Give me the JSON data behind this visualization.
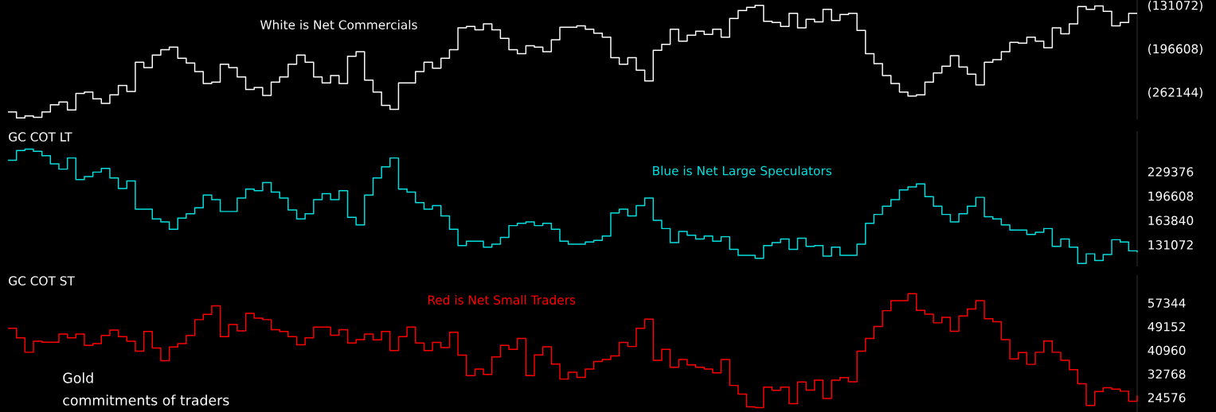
{
  "chart_data": [
    {
      "type": "step",
      "tick_labels": "y",
      "categories": [
        null,
        null,
        null,
        null,
        null,
        null,
        null,
        null,
        null,
        null,
        null,
        null,
        null,
        null,
        null,
        null,
        null,
        null,
        null,
        null,
        null,
        null,
        null,
        null,
        null,
        null,
        null,
        null,
        null,
        null,
        null,
        null,
        null,
        null,
        null,
        null,
        null,
        null,
        null,
        null,
        null,
        null,
        null,
        null,
        null,
        null,
        null,
        null,
        null,
        null,
        null,
        null,
        null,
        null,
        null,
        null,
        null,
        null,
        null,
        null,
        null,
        null,
        null,
        null,
        null,
        null,
        null,
        null,
        null,
        null,
        null,
        null,
        null,
        null,
        null,
        null,
        null,
        null,
        null,
        null,
        null,
        null,
        null,
        null,
        null,
        null,
        null,
        null,
        null,
        null,
        null,
        null,
        null,
        null,
        null,
        null,
        null,
        null,
        null,
        null,
        null,
        null,
        null,
        null,
        null,
        null,
        null,
        null,
        null,
        null,
        null,
        null,
        null,
        null,
        null,
        null,
        null,
        null,
        null,
        null,
        null,
        null,
        null,
        null,
        null,
        null,
        null,
        null,
        null,
        null,
        null,
        null,
        null,
        null
      ],
      "ylim": [
        -302000,
        -122000
      ],
      "yticks": [
        {
          "value": -131072,
          "label": "(131072)"
        },
        {
          "value": -196608,
          "label": "(196608)"
        },
        {
          "value": -262144,
          "label": "(262144)"
        }
      ],
      "series": [
        {
          "name": "White is Net Commercials",
          "color": "#ffffff",
          "values": [
            -291000,
            -300000,
            -297000,
            -299000,
            -291000,
            -280000,
            -276000,
            -288000,
            -263000,
            -261000,
            -271000,
            -278000,
            -265000,
            -251000,
            -260000,
            -216000,
            -224000,
            -205000,
            -197000,
            -193000,
            -210000,
            -217000,
            -230000,
            -248000,
            -246000,
            -219000,
            -224000,
            -238000,
            -257000,
            -254000,
            -266000,
            -246000,
            -238000,
            -219000,
            -205000,
            -216000,
            -238000,
            -247000,
            -236000,
            -248000,
            -207000,
            -200000,
            -243000,
            -261000,
            -281000,
            -287000,
            -247000,
            -247000,
            -230000,
            -216000,
            -225000,
            -210000,
            -197000,
            -164000,
            -162000,
            -167000,
            -158000,
            -167000,
            -180000,
            -197000,
            -203000,
            -191000,
            -193000,
            -200000,
            -182000,
            -163000,
            -163000,
            -161000,
            -166000,
            -172000,
            -178000,
            -209000,
            -219000,
            -209000,
            -228000,
            -244000,
            -198000,
            -189000,
            -166000,
            -184000,
            -175000,
            -169000,
            -174000,
            -166000,
            -178000,
            -150000,
            -138000,
            -133000,
            -130000,
            -154000,
            -156000,
            -162000,
            -142000,
            -164000,
            -151000,
            -155000,
            -136000,
            -153000,
            -144000,
            -142000,
            -168000,
            -203000,
            -218000,
            -236000,
            -248000,
            -261000,
            -267000,
            -265000,
            -246000,
            -232000,
            -222000,
            -206000,
            -223000,
            -234000,
            -250000,
            -216000,
            -212000,
            -200000,
            -186000,
            -187000,
            -178000,
            -184000,
            -194000,
            -164000,
            -173000,
            -158000,
            -132000,
            -136000,
            -131000,
            -139000,
            -161000,
            -156000,
            -142000,
            -142000
          ]
        }
      ]
    },
    {
      "type": "step",
      "tick_labels": "y",
      "title": "GC COT LT",
      "categories": [
        null,
        null,
        null,
        null,
        null,
        null,
        null,
        null,
        null,
        null,
        null,
        null,
        null,
        null,
        null,
        null,
        null,
        null,
        null,
        null,
        null,
        null,
        null,
        null,
        null,
        null,
        null,
        null,
        null,
        null,
        null,
        null,
        null,
        null,
        null,
        null,
        null,
        null,
        null,
        null,
        null,
        null,
        null,
        null,
        null,
        null,
        null,
        null,
        null,
        null,
        null,
        null,
        null,
        null,
        null,
        null,
        null,
        null,
        null,
        null,
        null,
        null,
        null,
        null,
        null,
        null,
        null,
        null,
        null,
        null,
        null,
        null,
        null,
        null,
        null,
        null,
        null,
        null,
        null,
        null,
        null,
        null,
        null,
        null,
        null,
        null,
        null,
        null,
        null,
        null,
        null,
        null,
        null,
        null,
        null,
        null,
        null,
        null,
        null,
        null,
        null,
        null,
        null,
        null,
        null,
        null,
        null,
        null,
        null,
        null,
        null,
        null,
        null,
        null,
        null,
        null,
        null,
        null,
        null,
        null,
        null,
        null,
        null,
        null,
        null,
        null,
        null,
        null,
        null,
        null,
        null,
        null,
        null,
        null
      ],
      "ylim": [
        102000,
        284000
      ],
      "yticks": [
        131072,
        163840,
        196608,
        229376
      ],
      "series": [
        {
          "name": "Blue is Net Large Speculators",
          "color": "#00e0e0",
          "values": [
            245000,
            258000,
            260000,
            257000,
            251000,
            240000,
            233000,
            248000,
            219000,
            223000,
            229000,
            234000,
            221000,
            207000,
            217000,
            179000,
            179000,
            166000,
            162000,
            152000,
            167000,
            173000,
            181000,
            198000,
            192000,
            176000,
            176000,
            194000,
            206000,
            204000,
            215000,
            202000,
            194000,
            178000,
            166000,
            173000,
            192000,
            200000,
            192000,
            204000,
            168000,
            158000,
            198000,
            221000,
            236000,
            248000,
            206000,
            202000,
            188000,
            179000,
            184000,
            170000,
            152000,
            130000,
            136000,
            136000,
            128000,
            132000,
            141000,
            157000,
            160000,
            162000,
            157000,
            160000,
            152000,
            136000,
            132000,
            132000,
            135000,
            137000,
            143000,
            174000,
            179000,
            170000,
            184000,
            194000,
            164000,
            153000,
            134000,
            149000,
            144000,
            139000,
            143000,
            136000,
            142000,
            125000,
            117000,
            117000,
            113000,
            130000,
            134000,
            139000,
            125000,
            140000,
            129000,
            130000,
            116000,
            128000,
            117000,
            117000,
            132000,
            160000,
            172000,
            183000,
            192000,
            205000,
            209000,
            213000,
            196000,
            183000,
            172000,
            162000,
            173000,
            183000,
            195000,
            169000,
            166000,
            158000,
            151000,
            151000,
            145000,
            148000,
            153000,
            129000,
            139000,
            128000,
            106000,
            119000,
            110000,
            118000,
            138000,
            135000,
            123000,
            121000
          ]
        }
      ]
    },
    {
      "type": "step",
      "tick_labels": "y",
      "title": "GC COT ST",
      "annotations": [
        "Gold",
        "commitments of traders"
      ],
      "categories": [
        null,
        null,
        null,
        null,
        null,
        null,
        null,
        null,
        null,
        null,
        null,
        null,
        null,
        null,
        null,
        null,
        null,
        null,
        null,
        null,
        null,
        null,
        null,
        null,
        null,
        null,
        null,
        null,
        null,
        null,
        null,
        null,
        null,
        null,
        null,
        null,
        null,
        null,
        null,
        null,
        null,
        null,
        null,
        null,
        null,
        null,
        null,
        null,
        null,
        null,
        null,
        null,
        null,
        null,
        null,
        null,
        null,
        null,
        null,
        null,
        null,
        null,
        null,
        null,
        null,
        null,
        null,
        null,
        null,
        null,
        null,
        null,
        null,
        null,
        null,
        null,
        null,
        null,
        null,
        null,
        null,
        null,
        null,
        null,
        null,
        null,
        null,
        null,
        null,
        null,
        null,
        null,
        null,
        null,
        null,
        null,
        null,
        null,
        null,
        null,
        null,
        null,
        null,
        null,
        null,
        null,
        null,
        null,
        null,
        null,
        null,
        null,
        null,
        null,
        null,
        null,
        null,
        null,
        null,
        null,
        null,
        null,
        null,
        null,
        null,
        null,
        null,
        null,
        null,
        null,
        null,
        null,
        null,
        null
      ],
      "ylim": [
        19600,
        67000
      ],
      "yticks": [
        24576,
        32768,
        40960,
        49152,
        57344
      ],
      "series": [
        {
          "name": "Red is Net Small Traders",
          "color": "#ff0000",
          "values": [
            48600,
            45300,
            40300,
            44100,
            43800,
            43800,
            46600,
            45300,
            46600,
            42700,
            43300,
            46100,
            48000,
            45700,
            44100,
            40700,
            47500,
            41800,
            37400,
            42100,
            43300,
            46100,
            51600,
            53400,
            56400,
            45700,
            49900,
            47700,
            53800,
            52100,
            51600,
            48100,
            47500,
            45700,
            42900,
            45300,
            49000,
            49000,
            46200,
            48100,
            43500,
            44700,
            46600,
            44600,
            47500,
            40900,
            45700,
            49000,
            43500,
            40900,
            43700,
            41900,
            47200,
            39300,
            32200,
            34500,
            32600,
            38700,
            42700,
            41300,
            45100,
            32200,
            39400,
            42200,
            36200,
            31000,
            33400,
            31600,
            34500,
            37100,
            37800,
            39000,
            43700,
            42300,
            48600,
            51800,
            37500,
            41300,
            35100,
            37800,
            35900,
            35100,
            34500,
            33200,
            37800,
            28800,
            25800,
            21400,
            21100,
            28200,
            27100,
            28200,
            22500,
            30000,
            27200,
            30600,
            24300,
            30600,
            31500,
            30100,
            40700,
            45100,
            49200,
            54700,
            58200,
            58200,
            60600,
            54800,
            53500,
            50500,
            52400,
            47600,
            52900,
            55300,
            58200,
            51900,
            50900,
            44700,
            38000,
            40200,
            36100,
            40300,
            44200,
            40300,
            37500,
            34300,
            29400,
            21900,
            26700,
            28000,
            27500,
            26800,
            23300,
            25300
          ]
        }
      ]
    }
  ]
}
